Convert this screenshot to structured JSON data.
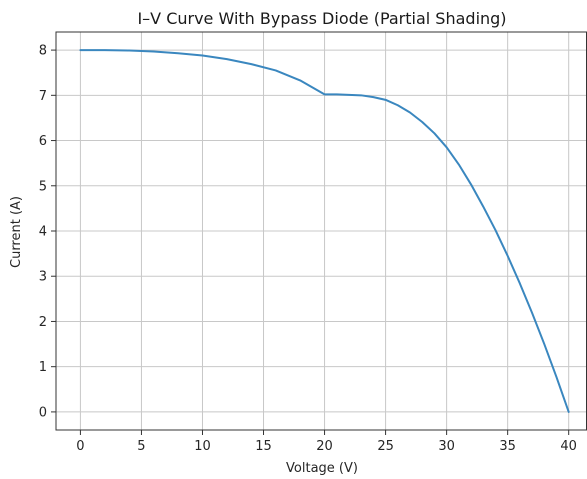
{
  "chart_data": {
    "type": "line",
    "title": "I–V Curve With Bypass Diode (Partial Shading)",
    "xlabel": "Voltage (V)",
    "ylabel": "Current (A)",
    "xlim": [
      -2,
      41.5
    ],
    "ylim": [
      -0.4,
      8.4
    ],
    "xticks": [
      0,
      5,
      10,
      15,
      20,
      25,
      30,
      35,
      40
    ],
    "yticks": [
      0,
      1,
      2,
      3,
      4,
      5,
      6,
      7,
      8
    ],
    "grid": true,
    "colors": {
      "line": "#3a87bf",
      "grid": "#c8c8c8",
      "frame": "#333333"
    },
    "series": [
      {
        "x": [
          0,
          2,
          4,
          6,
          8,
          10,
          12,
          14,
          16,
          18,
          20,
          21,
          22,
          23,
          24,
          25,
          26,
          27,
          28,
          29,
          30,
          31,
          32,
          33,
          34,
          35,
          36,
          37,
          38,
          39,
          40
        ],
        "y": [
          8.0,
          8.0,
          7.99,
          7.97,
          7.93,
          7.88,
          7.8,
          7.69,
          7.55,
          7.33,
          7.02,
          7.02,
          7.01,
          7.0,
          6.96,
          6.9,
          6.78,
          6.62,
          6.41,
          6.16,
          5.85,
          5.47,
          5.03,
          4.54,
          4.02,
          3.45,
          2.84,
          2.19,
          1.5,
          0.77,
          0.0
        ]
      }
    ]
  }
}
